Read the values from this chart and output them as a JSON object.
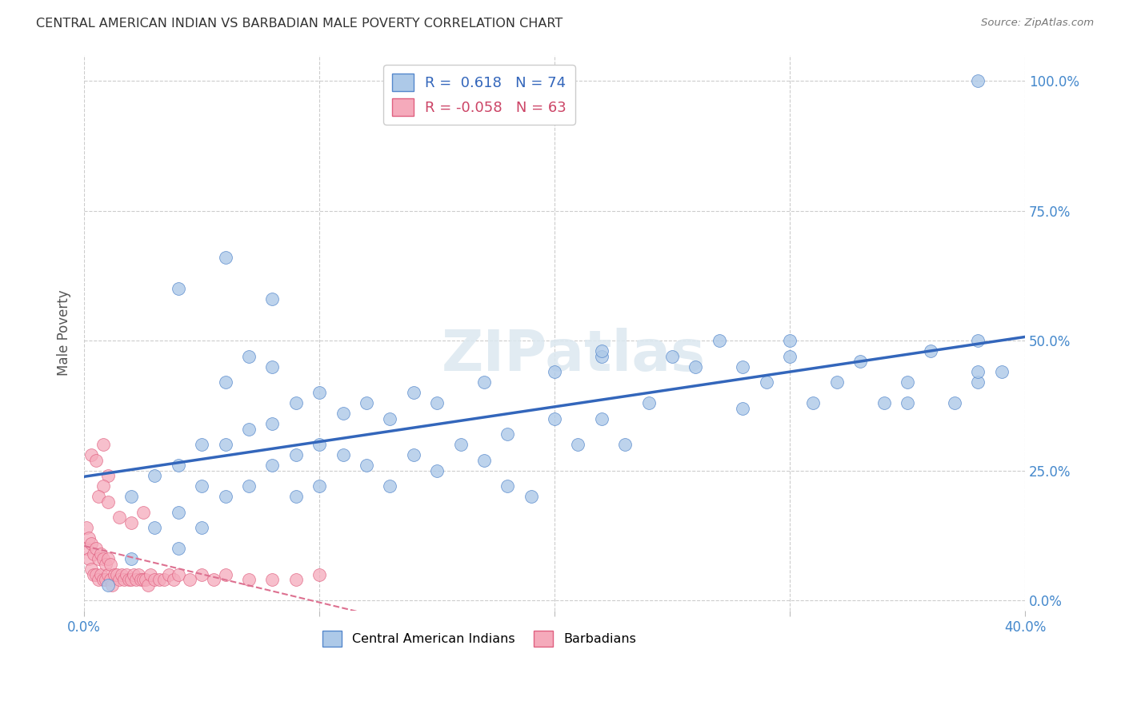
{
  "title": "CENTRAL AMERICAN INDIAN VS BARBADIAN MALE POVERTY CORRELATION CHART",
  "source": "Source: ZipAtlas.com",
  "ylabel": "Male Poverty",
  "yticks": [
    "0.0%",
    "25.0%",
    "50.0%",
    "75.0%",
    "100.0%"
  ],
  "ytick_vals": [
    0.0,
    0.25,
    0.5,
    0.75,
    1.0
  ],
  "xtick_vals": [
    0.0,
    0.1,
    0.2,
    0.3,
    0.4
  ],
  "xtick_labels": [
    "0.0%",
    "",
    "",
    "",
    "40.0%"
  ],
  "xlim": [
    0.0,
    0.4
  ],
  "ylim": [
    -0.02,
    1.05
  ],
  "blue_R": 0.618,
  "blue_N": 74,
  "pink_R": -0.058,
  "pink_N": 63,
  "blue_color": "#adc9e8",
  "pink_color": "#f5aabb",
  "blue_edge_color": "#5588cc",
  "pink_edge_color": "#e06080",
  "blue_line_color": "#3366bb",
  "pink_line_color": "#dd7090",
  "watermark": "ZIPatlas",
  "blue_scatter_x": [
    0.02,
    0.02,
    0.03,
    0.03,
    0.04,
    0.04,
    0.04,
    0.05,
    0.05,
    0.05,
    0.06,
    0.06,
    0.06,
    0.07,
    0.07,
    0.07,
    0.08,
    0.08,
    0.08,
    0.09,
    0.09,
    0.09,
    0.1,
    0.1,
    0.1,
    0.11,
    0.11,
    0.12,
    0.12,
    0.13,
    0.13,
    0.14,
    0.14,
    0.15,
    0.15,
    0.16,
    0.17,
    0.17,
    0.18,
    0.19,
    0.2,
    0.2,
    0.21,
    0.22,
    0.22,
    0.23,
    0.24,
    0.25,
    0.26,
    0.27,
    0.28,
    0.29,
    0.3,
    0.3,
    0.31,
    0.32,
    0.33,
    0.34,
    0.35,
    0.36,
    0.37,
    0.38,
    0.38,
    0.39,
    0.04,
    0.06,
    0.08,
    0.22,
    0.28,
    0.35,
    0.38,
    0.01,
    0.18,
    0.38
  ],
  "blue_scatter_y": [
    0.2,
    0.08,
    0.14,
    0.24,
    0.17,
    0.26,
    0.1,
    0.22,
    0.3,
    0.14,
    0.2,
    0.3,
    0.42,
    0.22,
    0.33,
    0.47,
    0.26,
    0.34,
    0.45,
    0.2,
    0.28,
    0.38,
    0.22,
    0.3,
    0.4,
    0.28,
    0.36,
    0.26,
    0.38,
    0.22,
    0.35,
    0.28,
    0.4,
    0.25,
    0.38,
    0.3,
    0.27,
    0.42,
    0.32,
    0.2,
    0.35,
    0.44,
    0.3,
    0.35,
    0.47,
    0.3,
    0.38,
    0.47,
    0.45,
    0.5,
    0.45,
    0.42,
    0.47,
    0.5,
    0.38,
    0.42,
    0.46,
    0.38,
    0.42,
    0.48,
    0.38,
    0.5,
    0.42,
    0.44,
    0.6,
    0.66,
    0.58,
    0.48,
    0.37,
    0.38,
    0.44,
    0.03,
    0.22,
    1.0
  ],
  "pink_scatter_x": [
    0.001,
    0.001,
    0.002,
    0.002,
    0.003,
    0.003,
    0.004,
    0.004,
    0.005,
    0.005,
    0.006,
    0.006,
    0.007,
    0.007,
    0.008,
    0.008,
    0.009,
    0.009,
    0.01,
    0.01,
    0.011,
    0.011,
    0.012,
    0.013,
    0.014,
    0.015,
    0.016,
    0.017,
    0.018,
    0.019,
    0.02,
    0.021,
    0.022,
    0.023,
    0.024,
    0.025,
    0.026,
    0.027,
    0.028,
    0.03,
    0.032,
    0.034,
    0.036,
    0.038,
    0.04,
    0.045,
    0.05,
    0.055,
    0.06,
    0.07,
    0.08,
    0.09,
    0.1,
    0.003,
    0.005,
    0.008,
    0.01,
    0.015,
    0.02,
    0.025,
    0.008,
    0.006,
    0.01
  ],
  "pink_scatter_y": [
    0.1,
    0.14,
    0.08,
    0.12,
    0.06,
    0.11,
    0.05,
    0.09,
    0.05,
    0.1,
    0.04,
    0.08,
    0.05,
    0.09,
    0.04,
    0.08,
    0.04,
    0.07,
    0.05,
    0.08,
    0.04,
    0.07,
    0.03,
    0.05,
    0.05,
    0.04,
    0.05,
    0.04,
    0.05,
    0.04,
    0.04,
    0.05,
    0.04,
    0.05,
    0.04,
    0.04,
    0.04,
    0.03,
    0.05,
    0.04,
    0.04,
    0.04,
    0.05,
    0.04,
    0.05,
    0.04,
    0.05,
    0.04,
    0.05,
    0.04,
    0.04,
    0.04,
    0.05,
    0.28,
    0.27,
    0.3,
    0.24,
    0.16,
    0.15,
    0.17,
    0.22,
    0.2,
    0.19
  ]
}
